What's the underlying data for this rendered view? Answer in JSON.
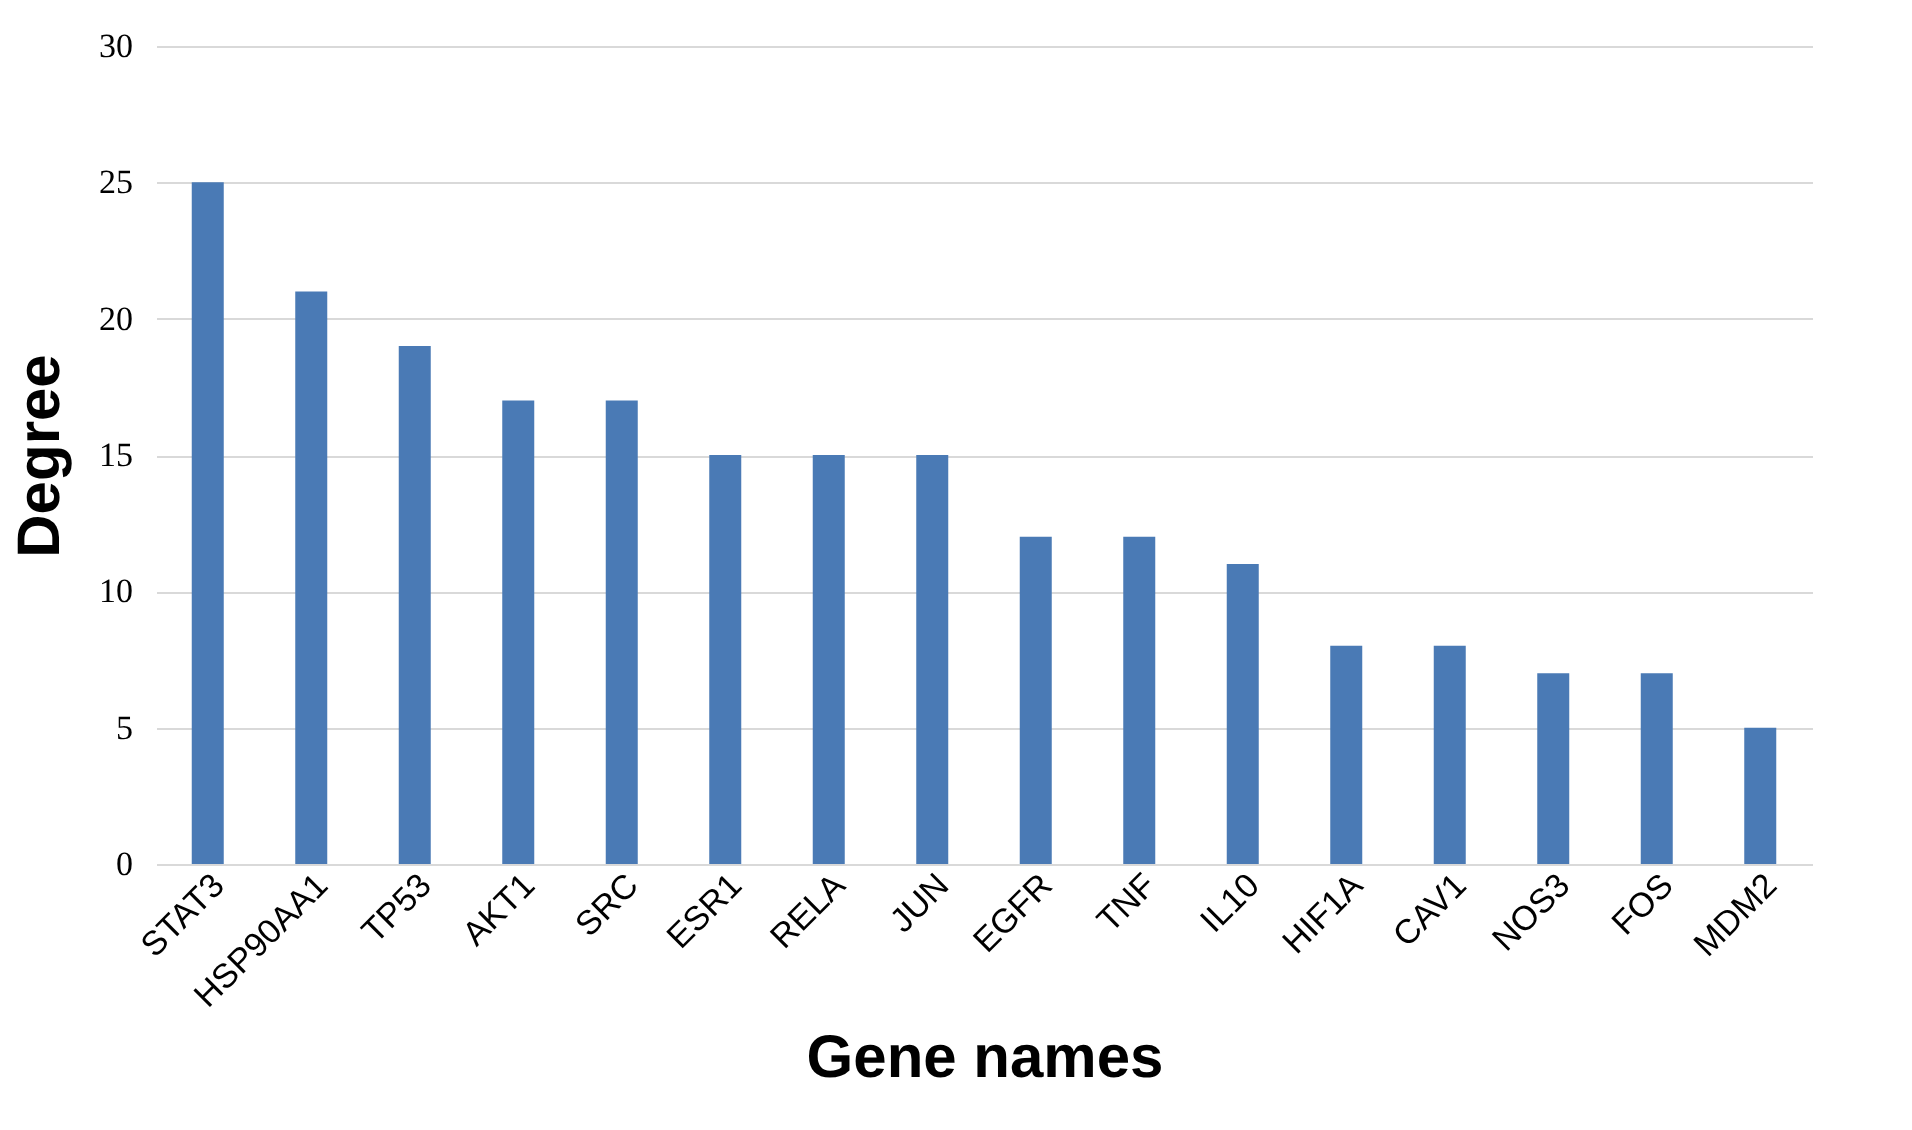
{
  "chart_data": {
    "type": "bar",
    "xlabel": "Gene names",
    "ylabel": "Degree",
    "categories": [
      "STAT3",
      "HSP90AA1",
      "TP53",
      "AKT1",
      "SRC",
      "ESR1",
      "RELA",
      "JUN",
      "EGFR",
      "TNF",
      "IL10",
      "HIF1A",
      "CAV1",
      "NOS3",
      "FOS",
      "MDM2"
    ],
    "values": [
      25,
      21,
      19,
      17,
      17,
      15,
      15,
      15,
      12,
      12,
      11,
      8,
      8,
      7,
      7,
      5
    ],
    "color": "#4a7ab5",
    "ylim": [
      0,
      30
    ],
    "yticks": [
      0,
      5,
      10,
      15,
      20,
      25,
      30
    ],
    "grid": "y"
  }
}
